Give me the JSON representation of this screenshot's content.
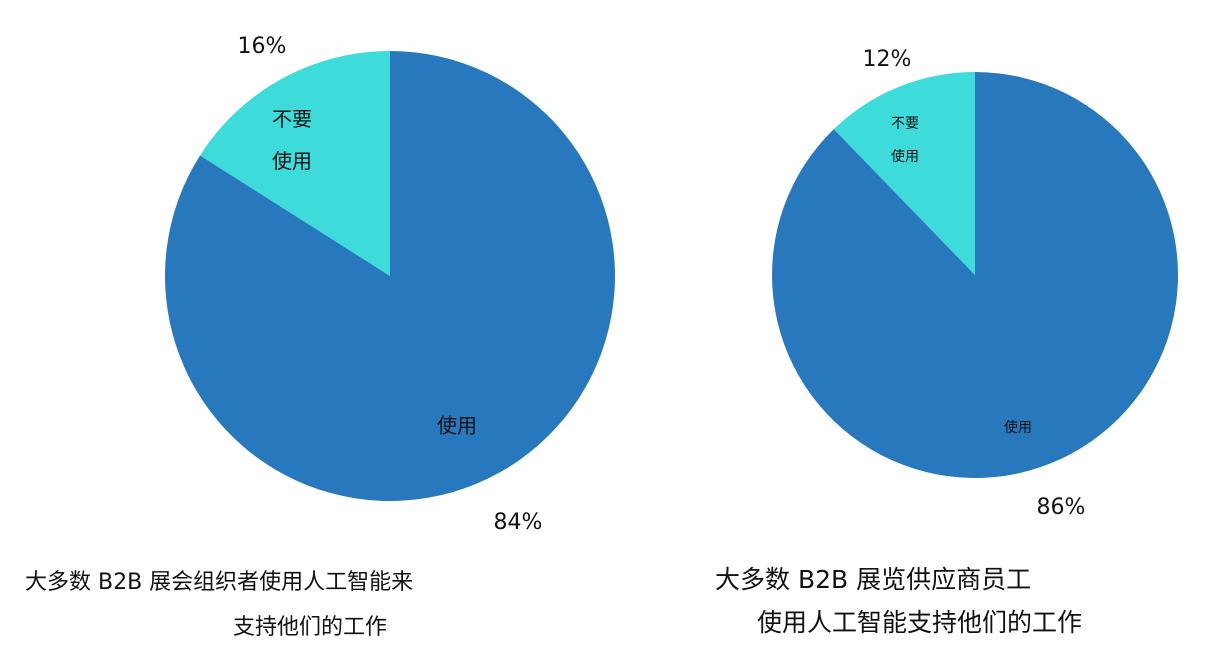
{
  "chart_data": [
    {
      "type": "pie",
      "categories": [
        "不要\n使用",
        "使用"
      ],
      "values": [
        16,
        84
      ],
      "value_labels": [
        "16%",
        "84%"
      ],
      "colors": [
        "#3ddbd9",
        "#2878be"
      ],
      "caption": [
        "大多数 B2B 展会组织者使用人工智能来",
        "支持他们的工作"
      ]
    },
    {
      "type": "pie",
      "categories": [
        "不要\n使用",
        "使用"
      ],
      "values": [
        12,
        86
      ],
      "value_labels": [
        "12%",
        "86%"
      ],
      "colors": [
        "#3ddbd9",
        "#2878be"
      ],
      "caption": [
        "大多数 B2B 展览供应商员工",
        "使用人工智能支持他们的工作"
      ]
    }
  ]
}
